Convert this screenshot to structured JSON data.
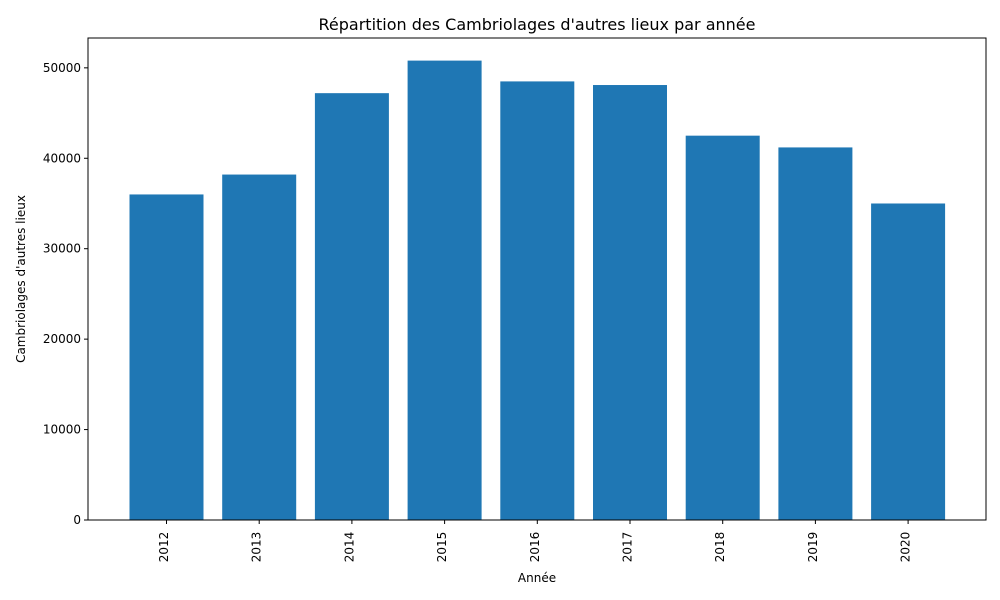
{
  "chart_data": {
    "type": "bar",
    "title": "Répartition des Cambriolages d'autres lieux par année",
    "xlabel": "Année",
    "ylabel": "Cambriolages d'autres lieux",
    "categories": [
      "2012",
      "2013",
      "2014",
      "2015",
      "2016",
      "2017",
      "2018",
      "2019",
      "2020"
    ],
    "values": [
      36000,
      38200,
      47200,
      50800,
      48500,
      48100,
      42500,
      41200,
      35000
    ],
    "ylim": [
      0,
      53300
    ],
    "yticks": [
      "0",
      "10000",
      "20000",
      "30000",
      "40000",
      "50000"
    ],
    "bar_color": "#1f77b4",
    "grid": false,
    "legend": "none"
  }
}
